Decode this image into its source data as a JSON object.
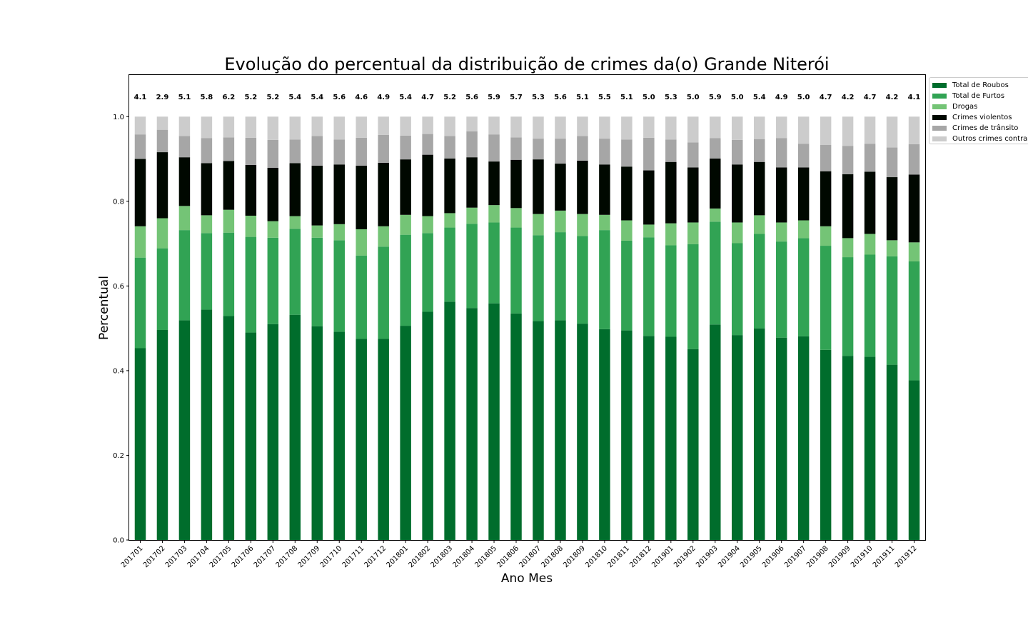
{
  "chart_data": {
    "type": "bar",
    "stacked": true,
    "title": "Evolução do percentual da distribuição de crimes da(o) Grande Niterói",
    "xlabel": "Ano Mes",
    "ylabel": "Percentual",
    "ylim": [
      0,
      1.1
    ],
    "yticks": [
      "0.0",
      "0.2",
      "0.4",
      "0.6",
      "0.8",
      "1.0"
    ],
    "legend_position": "outside-top-right",
    "categories": [
      "201701",
      "201702",
      "201703",
      "201704",
      "201705",
      "201706",
      "201707",
      "201708",
      "201709",
      "201710",
      "201711",
      "201712",
      "201801",
      "201802",
      "201803",
      "201804",
      "201805",
      "201806",
      "201807",
      "201808",
      "201809",
      "201810",
      "201811",
      "201812",
      "201901",
      "201902",
      "201903",
      "201904",
      "201905",
      "201906",
      "201907",
      "201908",
      "201909",
      "201910",
      "201911",
      "201912"
    ],
    "top_labels": [
      "4.1",
      "2.9",
      "5.1",
      "5.8",
      "6.2",
      "5.2",
      "5.2",
      "5.4",
      "5.4",
      "5.6",
      "4.6",
      "4.9",
      "5.4",
      "4.7",
      "5.2",
      "5.6",
      "5.9",
      "5.7",
      "5.3",
      "5.6",
      "5.1",
      "5.5",
      "5.1",
      "5.0",
      "5.3",
      "5.0",
      "5.9",
      "5.0",
      "5.4",
      "4.9",
      "5.0",
      "4.7",
      "4.2",
      "4.7",
      "4.2",
      "4.1"
    ],
    "series": [
      {
        "name": "Total de Roubos",
        "color": "#006d2c",
        "values": [
          0.453,
          0.496,
          0.519,
          0.544,
          0.529,
          0.49,
          0.51,
          0.532,
          0.505,
          0.492,
          0.475,
          0.475,
          0.506,
          0.539,
          0.563,
          0.548,
          0.559,
          0.535,
          0.517,
          0.519,
          0.511,
          0.498,
          0.495,
          0.482,
          0.48,
          0.451,
          0.509,
          0.484,
          0.5,
          0.478,
          0.481,
          0.449,
          0.435,
          0.433,
          0.414,
          0.377
        ]
      },
      {
        "name": "Total de Furtos",
        "color": "#31a354",
        "values": [
          0.214,
          0.193,
          0.213,
          0.181,
          0.197,
          0.226,
          0.204,
          0.203,
          0.209,
          0.216,
          0.197,
          0.218,
          0.215,
          0.186,
          0.175,
          0.199,
          0.191,
          0.203,
          0.203,
          0.208,
          0.207,
          0.234,
          0.212,
          0.233,
          0.216,
          0.248,
          0.243,
          0.217,
          0.223,
          0.227,
          0.232,
          0.246,
          0.233,
          0.241,
          0.256,
          0.281
        ]
      },
      {
        "name": "Drogas",
        "color": "#74c476",
        "values": [
          0.074,
          0.071,
          0.057,
          0.042,
          0.054,
          0.05,
          0.039,
          0.03,
          0.029,
          0.038,
          0.062,
          0.048,
          0.047,
          0.04,
          0.034,
          0.038,
          0.041,
          0.046,
          0.05,
          0.051,
          0.052,
          0.036,
          0.048,
          0.03,
          0.052,
          0.051,
          0.031,
          0.049,
          0.044,
          0.045,
          0.042,
          0.046,
          0.045,
          0.049,
          0.038,
          0.045
        ]
      },
      {
        "name": "Crimes violentos",
        "color": "#000800",
        "values": [
          0.159,
          0.156,
          0.115,
          0.123,
          0.115,
          0.12,
          0.126,
          0.125,
          0.141,
          0.141,
          0.15,
          0.15,
          0.131,
          0.145,
          0.129,
          0.119,
          0.103,
          0.114,
          0.129,
          0.111,
          0.126,
          0.119,
          0.127,
          0.128,
          0.145,
          0.13,
          0.118,
          0.137,
          0.126,
          0.13,
          0.125,
          0.13,
          0.151,
          0.147,
          0.149,
          0.16
        ]
      },
      {
        "name": "Crimes de trânsito",
        "color": "#a6a6a6",
        "values": [
          0.058,
          0.053,
          0.05,
          0.059,
          0.056,
          0.064,
          0.066,
          0.056,
          0.07,
          0.059,
          0.066,
          0.066,
          0.056,
          0.049,
          0.053,
          0.061,
          0.064,
          0.053,
          0.049,
          0.059,
          0.058,
          0.061,
          0.064,
          0.077,
          0.053,
          0.059,
          0.048,
          0.058,
          0.054,
          0.069,
          0.056,
          0.062,
          0.067,
          0.066,
          0.07,
          0.072
        ]
      },
      {
        "name": "Outros crimes contra",
        "color": "#cccccc",
        "values": [
          0.042,
          0.031,
          0.046,
          0.051,
          0.049,
          0.05,
          0.055,
          0.054,
          0.046,
          0.054,
          0.05,
          0.043,
          0.045,
          0.041,
          0.046,
          0.035,
          0.042,
          0.049,
          0.052,
          0.052,
          0.046,
          0.052,
          0.054,
          0.05,
          0.054,
          0.061,
          0.051,
          0.055,
          0.053,
          0.051,
          0.064,
          0.067,
          0.069,
          0.064,
          0.073,
          0.065
        ]
      }
    ]
  }
}
